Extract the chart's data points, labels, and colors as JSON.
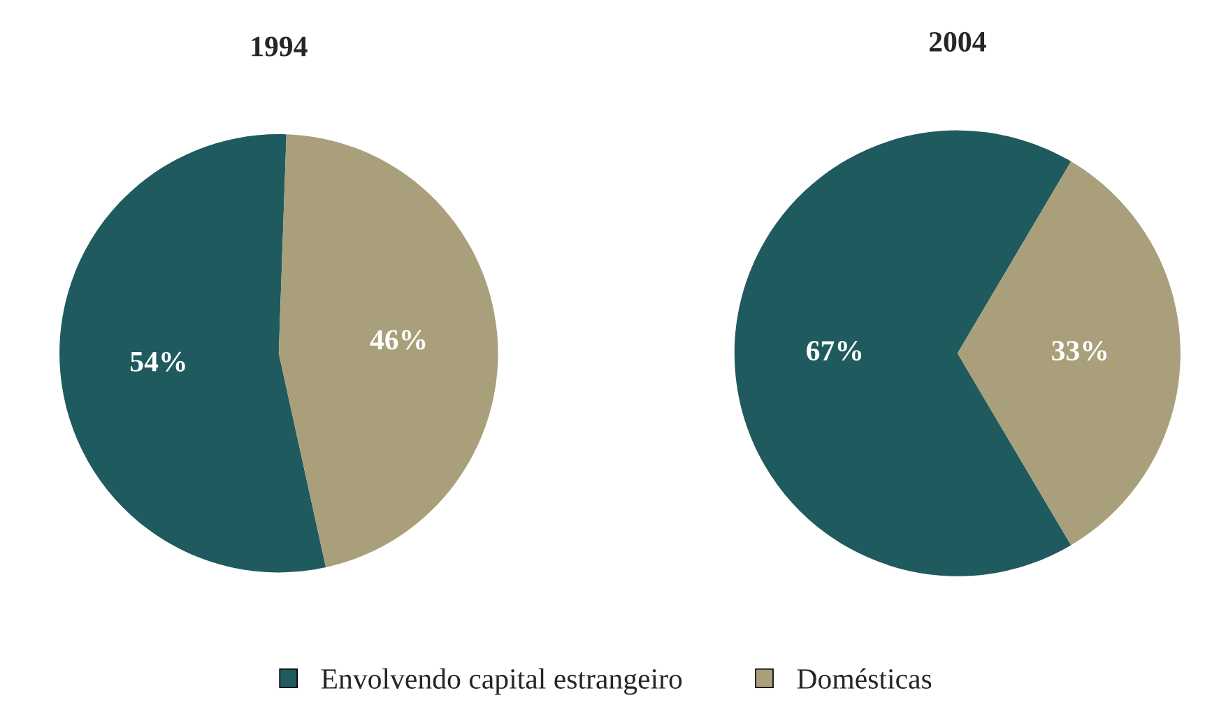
{
  "chart_data": [
    {
      "type": "pie",
      "title": "1994",
      "categories": [
        "Envolvendo capital estrangeiro",
        "Domésticas"
      ],
      "values": [
        54,
        46
      ],
      "colors": [
        "#1f5a5e",
        "#a99f7a"
      ],
      "value_labels": [
        "54%",
        "46%"
      ],
      "legend": "bottom"
    },
    {
      "type": "pie",
      "title": "2004",
      "categories": [
        null,
        null
      ],
      "values": [
        67,
        33
      ],
      "colors": [
        "#1f5a5e",
        "#a99f7a"
      ],
      "value_labels": [
        "67%",
        "33%"
      ]
    }
  ]
}
